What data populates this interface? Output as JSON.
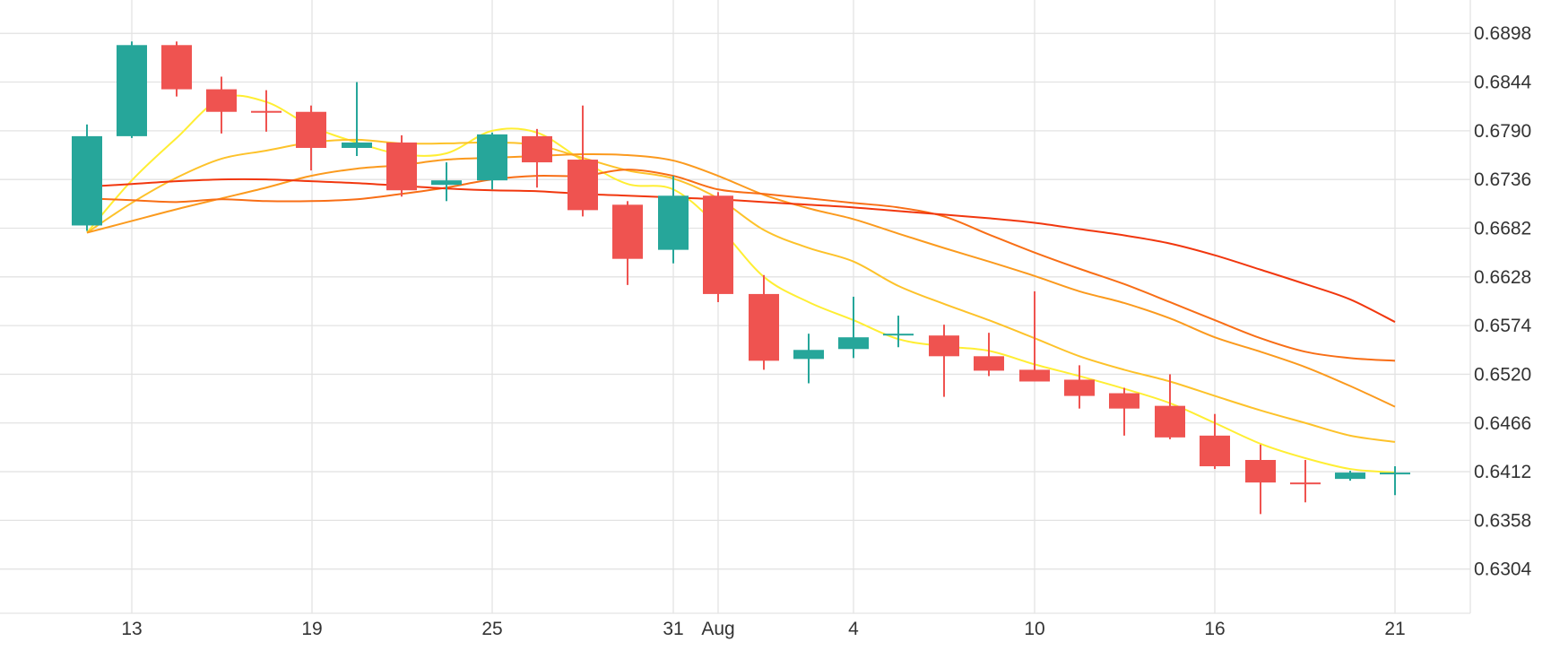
{
  "chart_data": {
    "type": "candlestick",
    "x_tick_labels": [
      "13",
      "19",
      "25",
      "31",
      "Aug",
      "4",
      "10",
      "16",
      "21"
    ],
    "y_tick_labels": [
      "0.6898",
      "0.6844",
      "0.6790",
      "0.6736",
      "0.6682",
      "0.6628",
      "0.6574",
      "0.6520",
      "0.6466",
      "0.6412",
      "0.6358",
      "0.6304"
    ],
    "ylim": [
      0.6255,
      0.6935
    ],
    "grid": true,
    "colors": {
      "up": "#26a69a",
      "down": "#ef5350",
      "grid": "#e3e3e3"
    },
    "candles": [
      {
        "date": "Jul 11",
        "open": 0.6685,
        "high": 0.6797,
        "low": 0.6679,
        "close": 0.6784
      },
      {
        "date": "Jul 13",
        "open": 0.6784,
        "high": 0.6889,
        "low": 0.6782,
        "close": 0.6885
      },
      {
        "date": "Jul 14",
        "open": 0.6885,
        "high": 0.6889,
        "low": 0.6828,
        "close": 0.6836
      },
      {
        "date": "Jul 17",
        "open": 0.6836,
        "high": 0.685,
        "low": 0.6787,
        "close": 0.6811
      },
      {
        "date": "Jul 18",
        "open": 0.6812,
        "high": 0.6835,
        "low": 0.6789,
        "close": 0.681
      },
      {
        "date": "Jul 19",
        "open": 0.6811,
        "high": 0.6818,
        "low": 0.6746,
        "close": 0.6771
      },
      {
        "date": "Jul 20",
        "open": 0.6771,
        "high": 0.6844,
        "low": 0.6762,
        "close": 0.6777
      },
      {
        "date": "Jul 21",
        "open": 0.6777,
        "high": 0.6785,
        "low": 0.6717,
        "close": 0.6724
      },
      {
        "date": "Jul 24",
        "open": 0.673,
        "high": 0.6755,
        "low": 0.6712,
        "close": 0.6735
      },
      {
        "date": "Jul 25",
        "open": 0.6735,
        "high": 0.6788,
        "low": 0.6725,
        "close": 0.6786
      },
      {
        "date": "Jul 26",
        "open": 0.6784,
        "high": 0.6792,
        "low": 0.6727,
        "close": 0.6755
      },
      {
        "date": "Jul 27",
        "open": 0.6758,
        "high": 0.6818,
        "low": 0.6695,
        "close": 0.6702
      },
      {
        "date": "Jul 28",
        "open": 0.6708,
        "high": 0.6712,
        "low": 0.6619,
        "close": 0.6648
      },
      {
        "date": "Jul 31",
        "open": 0.6658,
        "high": 0.674,
        "low": 0.6643,
        "close": 0.6718
      },
      {
        "date": "Aug 1",
        "open": 0.6718,
        "high": 0.6722,
        "low": 0.66,
        "close": 0.6609
      },
      {
        "date": "Aug 2",
        "open": 0.6609,
        "high": 0.663,
        "low": 0.6525,
        "close": 0.6535
      },
      {
        "date": "Aug 3",
        "open": 0.6537,
        "high": 0.6565,
        "low": 0.651,
        "close": 0.6547
      },
      {
        "date": "Aug 4",
        "open": 0.6548,
        "high": 0.6606,
        "low": 0.6538,
        "close": 0.6561
      },
      {
        "date": "Aug 7",
        "open": 0.6563,
        "high": 0.6585,
        "low": 0.655,
        "close": 0.6565
      },
      {
        "date": "Aug 8",
        "open": 0.6563,
        "high": 0.6575,
        "low": 0.6495,
        "close": 0.654
      },
      {
        "date": "Aug 9",
        "open": 0.654,
        "high": 0.6566,
        "low": 0.6518,
        "close": 0.6524
      },
      {
        "date": "Aug 10",
        "open": 0.6525,
        "high": 0.6612,
        "low": 0.6512,
        "close": 0.6512
      },
      {
        "date": "Aug 11",
        "open": 0.6514,
        "high": 0.653,
        "low": 0.6482,
        "close": 0.6496
      },
      {
        "date": "Aug 14",
        "open": 0.6499,
        "high": 0.6505,
        "low": 0.6452,
        "close": 0.6482
      },
      {
        "date": "Aug 15",
        "open": 0.6485,
        "high": 0.652,
        "low": 0.6448,
        "close": 0.645
      },
      {
        "date": "Aug 16",
        "open": 0.6452,
        "high": 0.6476,
        "low": 0.6415,
        "close": 0.6418
      },
      {
        "date": "Aug 17",
        "open": 0.6425,
        "high": 0.6442,
        "low": 0.6365,
        "close": 0.64
      },
      {
        "date": "Aug 18",
        "open": 0.64,
        "high": 0.6425,
        "low": 0.6378,
        "close": 0.6399
      },
      {
        "date": "Aug 19",
        "open": 0.6404,
        "high": 0.6413,
        "low": 0.6402,
        "close": 0.6411
      },
      {
        "date": "Aug 21",
        "open": 0.6411,
        "high": 0.6418,
        "low": 0.6386,
        "close": 0.6411
      }
    ],
    "series": [
      {
        "color": "#ffee33",
        "values": [
          0.6677,
          0.6735,
          0.6782,
          0.6826,
          0.6822,
          0.6795,
          0.6777,
          0.6764,
          0.6765,
          0.679,
          0.6788,
          0.6757,
          0.6731,
          0.6725,
          0.6684,
          0.6628,
          0.66,
          0.658,
          0.6559,
          0.6551,
          0.6546,
          0.6531,
          0.6518,
          0.6504,
          0.6488,
          0.6466,
          0.6443,
          0.6427,
          0.6415,
          0.6411
        ]
      },
      {
        "color": "#fdc22a",
        "values": [
          0.6677,
          0.671,
          0.6738,
          0.6759,
          0.6768,
          0.6777,
          0.678,
          0.6776,
          0.6776,
          0.6777,
          0.6774,
          0.676,
          0.6746,
          0.6737,
          0.6715,
          0.668,
          0.666,
          0.6645,
          0.6618,
          0.6598,
          0.658,
          0.656,
          0.654,
          0.6525,
          0.6512,
          0.6496,
          0.648,
          0.6466,
          0.6452,
          0.6445
        ]
      },
      {
        "color": "#fb9a1e",
        "values": [
          0.6677,
          0.669,
          0.6703,
          0.6715,
          0.6727,
          0.674,
          0.6748,
          0.6752,
          0.6758,
          0.676,
          0.6762,
          0.6764,
          0.6763,
          0.6757,
          0.674,
          0.6719,
          0.6704,
          0.6692,
          0.6676,
          0.666,
          0.6645,
          0.6629,
          0.6612,
          0.6599,
          0.6582,
          0.6561,
          0.6545,
          0.6528,
          0.6507,
          0.6484
        ]
      },
      {
        "color": "#f86e16",
        "values": [
          0.6715,
          0.6713,
          0.6711,
          0.6714,
          0.6712,
          0.6712,
          0.6714,
          0.672,
          0.6727,
          0.6736,
          0.674,
          0.674,
          0.6747,
          0.674,
          0.6725,
          0.672,
          0.6715,
          0.671,
          0.6705,
          0.6695,
          0.6675,
          0.6655,
          0.6637,
          0.662,
          0.66,
          0.658,
          0.656,
          0.6545,
          0.6538,
          0.6535
        ]
      },
      {
        "color": "#f1370e",
        "values": [
          0.6728,
          0.6731,
          0.6734,
          0.6736,
          0.6736,
          0.6734,
          0.6732,
          0.6729,
          0.6726,
          0.6724,
          0.6723,
          0.672,
          0.6718,
          0.6716,
          0.6714,
          0.6711,
          0.6708,
          0.6705,
          0.6701,
          0.6697,
          0.6693,
          0.6688,
          0.6681,
          0.6674,
          0.6665,
          0.6652,
          0.6636,
          0.662,
          0.6603,
          0.6578
        ]
      }
    ]
  }
}
